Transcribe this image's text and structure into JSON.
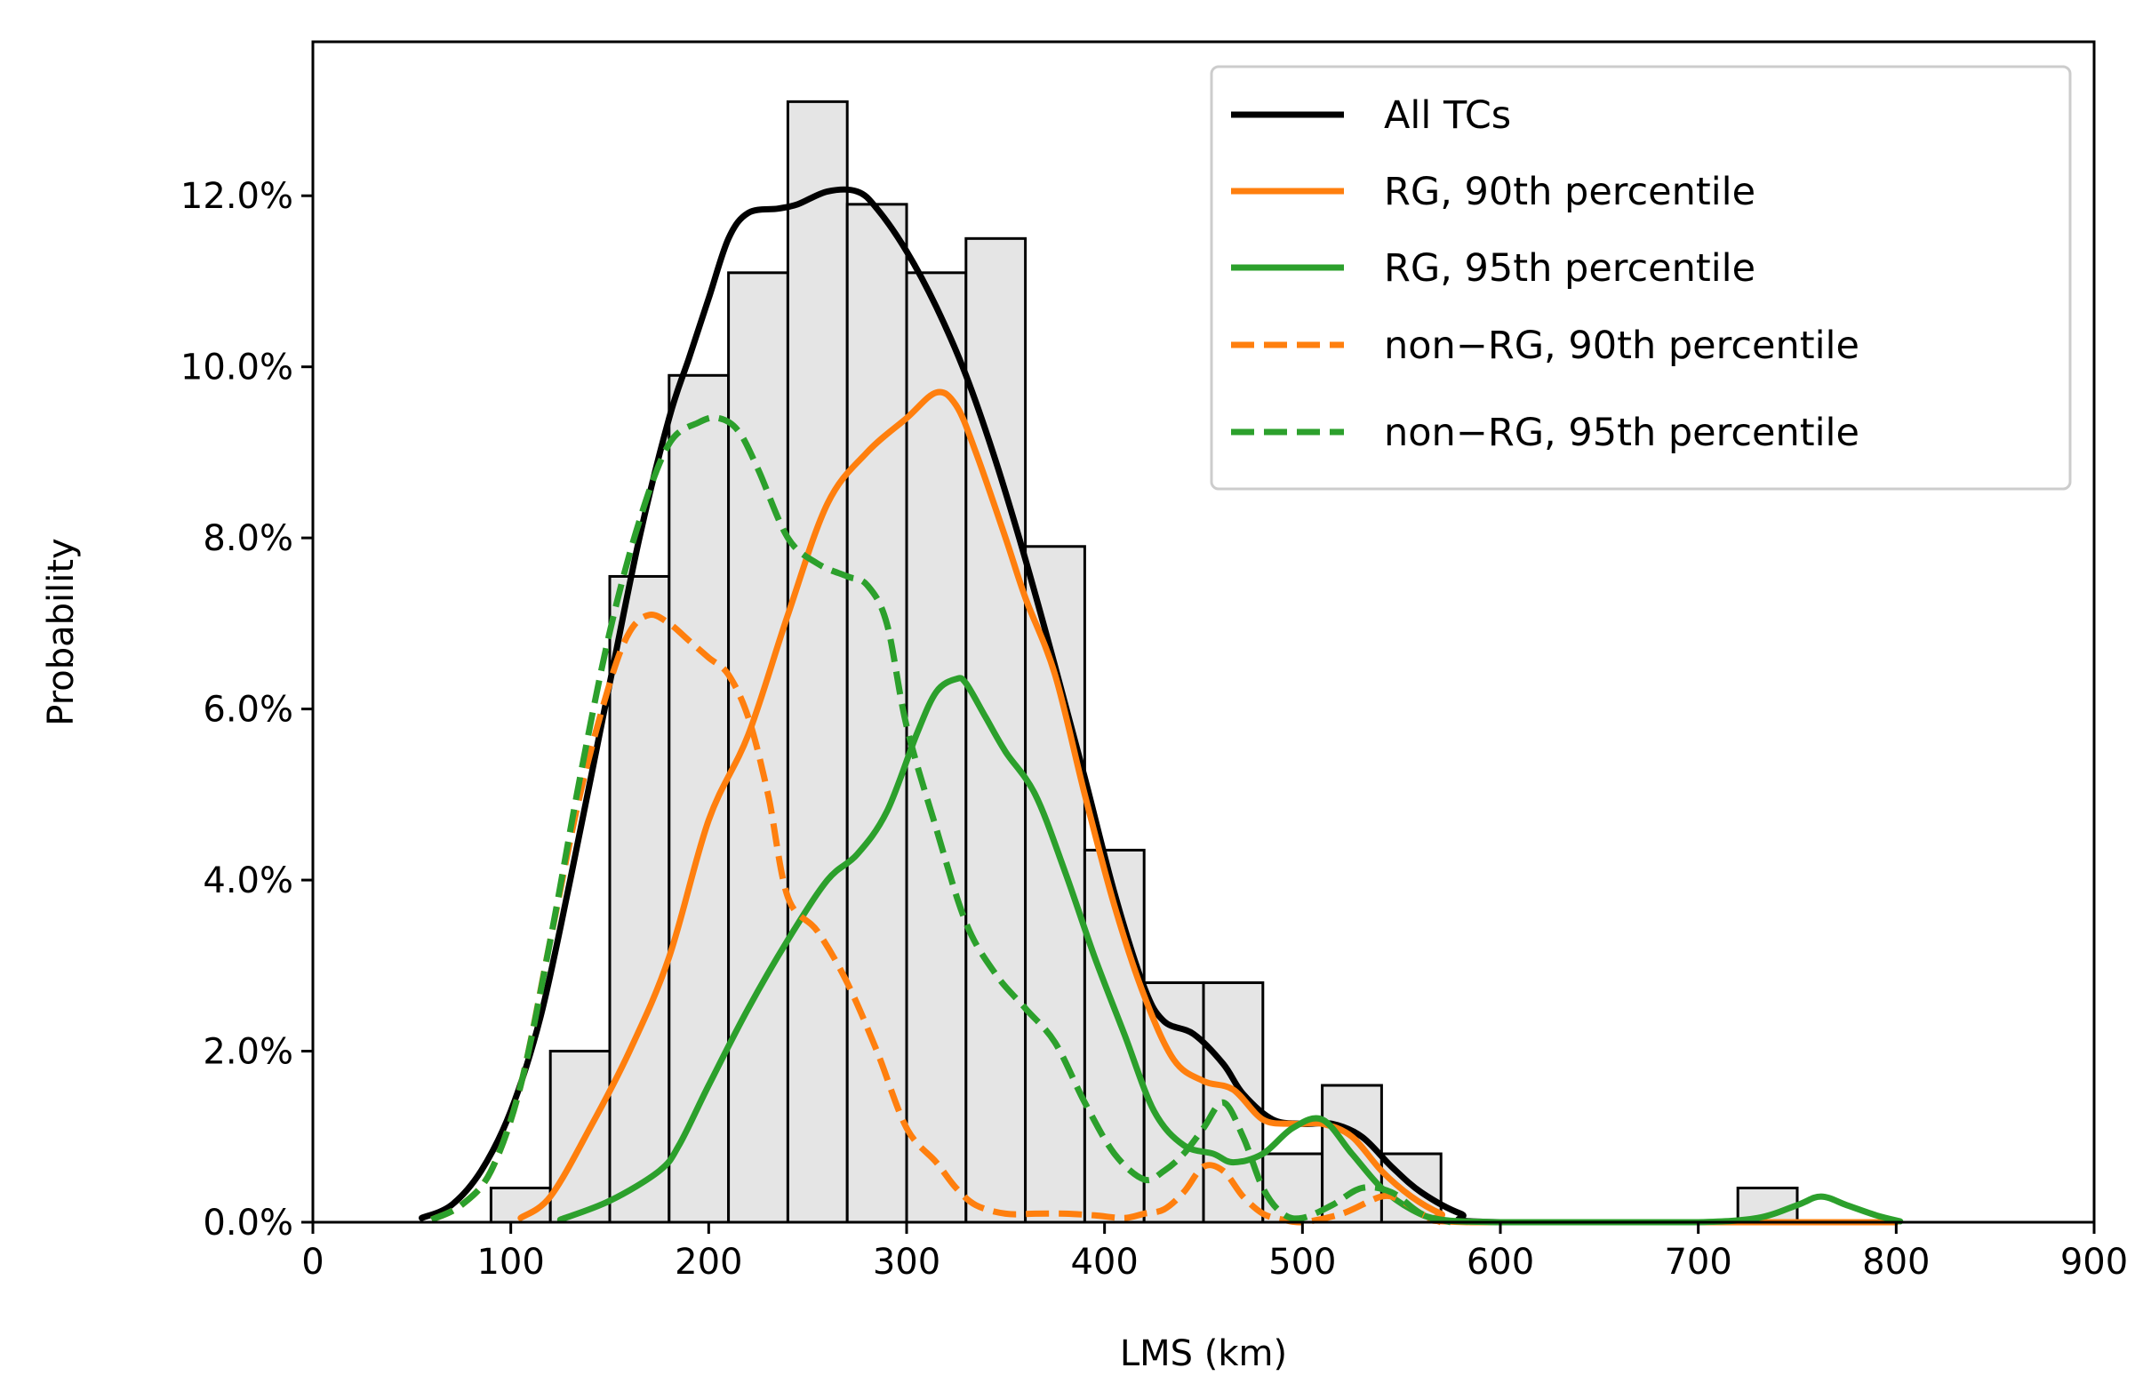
{
  "chart_data": {
    "type": "histogram-with-kde",
    "title": "",
    "xlabel": "LMS (km)",
    "ylabel": "Probability",
    "xlim": [
      0,
      900
    ],
    "ylim": [
      0,
      0.138
    ],
    "xticks": [
      0,
      100,
      200,
      300,
      400,
      500,
      600,
      700,
      800,
      900
    ],
    "xtick_labels": [
      "0",
      "100",
      "200",
      "300",
      "400",
      "500",
      "600",
      "700",
      "800",
      "900"
    ],
    "yticks": [
      0,
      0.02,
      0.04,
      0.06,
      0.08,
      0.1,
      0.12
    ],
    "ytick_labels": [
      "0.0%",
      "2.0%",
      "4.0%",
      "6.0%",
      "8.0%",
      "10.0%",
      "12.0%"
    ],
    "histogram": {
      "bin_edges": [
        90,
        120,
        150,
        180,
        210,
        240,
        270,
        300,
        330,
        360,
        390,
        420,
        450,
        480,
        510,
        540,
        570,
        600,
        630,
        660,
        690,
        720,
        750
      ],
      "values": [
        0.004,
        0.02,
        0.0755,
        0.099,
        0.111,
        0.131,
        0.119,
        0.111,
        0.115,
        0.079,
        0.0435,
        0.028,
        0.028,
        0.008,
        0.016,
        0.008,
        0,
        0,
        0,
        0,
        0,
        0.004
      ],
      "fill": "#e5e5e5",
      "edge": "#000000"
    },
    "series": [
      {
        "name": "All TCs",
        "color": "#000000",
        "style": "solid",
        "x": [
          55,
          70,
          85,
          100,
          115,
          130,
          150,
          165,
          180,
          190,
          200,
          210,
          220,
          235,
          245,
          260,
          275,
          285,
          300,
          315,
          330,
          345,
          360,
          375,
          390,
          405,
          420,
          430,
          445,
          460,
          470,
          485,
          500,
          515,
          530,
          545,
          560,
          580,
          600,
          800
        ],
        "y": [
          0.0005,
          0.002,
          0.006,
          0.013,
          0.024,
          0.04,
          0.063,
          0.08,
          0.094,
          0.101,
          0.108,
          0.115,
          0.118,
          0.1185,
          0.119,
          0.1205,
          0.1205,
          0.1185,
          0.1135,
          0.107,
          0.099,
          0.089,
          0.0775,
          0.065,
          0.052,
          0.0385,
          0.0275,
          0.0235,
          0.022,
          0.0185,
          0.015,
          0.012,
          0.0115,
          0.0115,
          0.01,
          0.0065,
          0.0035,
          0.001,
          0.0,
          0.0
        ]
      },
      {
        "name": "RG, 90th percentile",
        "color": "#ff7f0e",
        "style": "solid",
        "x": [
          105,
          120,
          140,
          160,
          180,
          200,
          220,
          240,
          260,
          280,
          300,
          315,
          325,
          335,
          350,
          360,
          375,
          390,
          405,
          420,
          435,
          450,
          465,
          480,
          495,
          510,
          525,
          540,
          555,
          570,
          585,
          800
        ],
        "y": [
          0.0005,
          0.003,
          0.011,
          0.02,
          0.031,
          0.047,
          0.057,
          0.071,
          0.084,
          0.09,
          0.094,
          0.097,
          0.0955,
          0.09,
          0.08,
          0.073,
          0.064,
          0.05,
          0.037,
          0.0265,
          0.019,
          0.0165,
          0.0155,
          0.012,
          0.0115,
          0.0115,
          0.01,
          0.006,
          0.003,
          0.001,
          0.0,
          0.0
        ]
      },
      {
        "name": "RG, 95th percentile",
        "color": "#2ca02c",
        "style": "solid",
        "x": [
          125,
          150,
          175,
          185,
          200,
          220,
          240,
          260,
          275,
          290,
          305,
          315,
          325,
          330,
          340,
          350,
          365,
          380,
          395,
          410,
          425,
          440,
          455,
          465,
          480,
          495,
          510,
          525,
          540,
          555,
          570,
          600,
          650,
          700,
          730,
          750,
          762,
          775,
          790,
          802
        ],
        "y": [
          0.0003,
          0.0025,
          0.006,
          0.009,
          0.016,
          0.025,
          0.033,
          0.04,
          0.043,
          0.048,
          0.057,
          0.062,
          0.0635,
          0.063,
          0.059,
          0.055,
          0.05,
          0.041,
          0.031,
          0.022,
          0.013,
          0.009,
          0.008,
          0.007,
          0.008,
          0.011,
          0.012,
          0.008,
          0.004,
          0.0015,
          0.0003,
          0.0,
          0.0,
          0.0,
          0.0005,
          0.002,
          0.003,
          0.002,
          0.0008,
          0.0001
        ]
      },
      {
        "name": "non−RG, 90th percentile",
        "color": "#ff7f0e",
        "style": "dashed",
        "x": [
          60,
          75,
          90,
          105,
          120,
          135,
          150,
          160,
          170,
          180,
          190,
          200,
          210,
          220,
          230,
          240,
          255,
          270,
          285,
          300,
          315,
          325,
          335,
          350,
          365,
          380,
          395,
          410,
          420,
          430,
          440,
          450,
          460,
          470,
          480,
          490,
          500,
          520,
          540,
          550,
          560,
          570
        ],
        "y": [
          0.0003,
          0.002,
          0.006,
          0.016,
          0.033,
          0.05,
          0.063,
          0.069,
          0.071,
          0.07,
          0.068,
          0.066,
          0.064,
          0.059,
          0.05,
          0.038,
          0.034,
          0.028,
          0.02,
          0.011,
          0.007,
          0.004,
          0.002,
          0.001,
          0.001,
          0.001,
          0.0008,
          0.0005,
          0.001,
          0.0015,
          0.0035,
          0.0065,
          0.006,
          0.003,
          0.001,
          0.0003,
          0.0,
          0.001,
          0.003,
          0.0025,
          0.001,
          0.0
        ]
      },
      {
        "name": "non−RG, 95th percentile",
        "color": "#2ca02c",
        "style": "dashed",
        "x": [
          60,
          75,
          90,
          105,
          120,
          135,
          150,
          165,
          180,
          195,
          205,
          215,
          225,
          240,
          255,
          270,
          280,
          290,
          300,
          315,
          330,
          345,
          360,
          375,
          390,
          405,
          420,
          430,
          440,
          450,
          460,
          470,
          480,
          490,
          500,
          515,
          530,
          545,
          560,
          575
        ],
        "y": [
          0.0003,
          0.002,
          0.006,
          0.016,
          0.033,
          0.052,
          0.069,
          0.082,
          0.091,
          0.0935,
          0.094,
          0.0925,
          0.088,
          0.08,
          0.077,
          0.0755,
          0.0745,
          0.07,
          0.058,
          0.046,
          0.035,
          0.029,
          0.025,
          0.021,
          0.014,
          0.008,
          0.005,
          0.006,
          0.008,
          0.011,
          0.014,
          0.01,
          0.004,
          0.001,
          0.0005,
          0.002,
          0.004,
          0.0035,
          0.001,
          0.0
        ]
      }
    ],
    "legend": {
      "placement": "top-right",
      "entries": [
        "All TCs",
        "RG, 90th percentile",
        "RG, 95th percentile",
        "non−RG, 90th percentile",
        "non−RG, 95th percentile"
      ]
    }
  }
}
